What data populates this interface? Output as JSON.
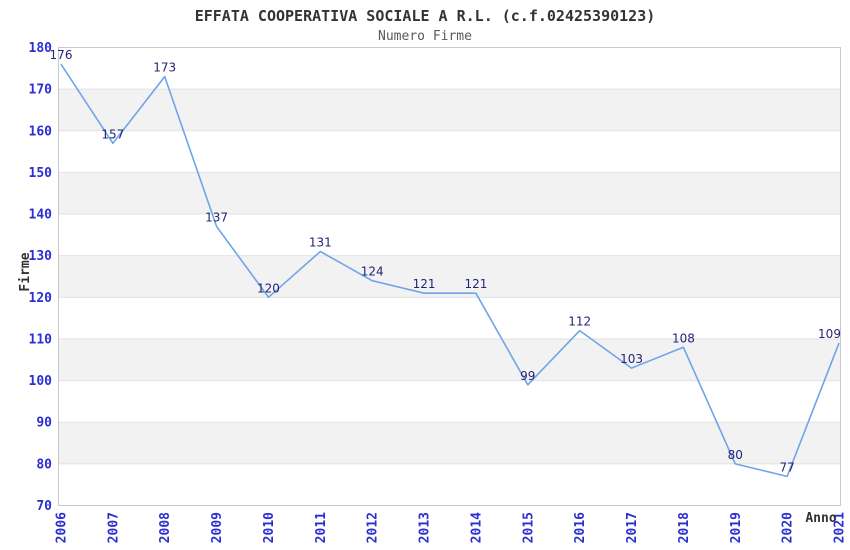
{
  "chart_data": {
    "type": "line",
    "title": "EFFATA COOPERATIVA SOCIALE A R.L. (c.f.02425390123)",
    "subtitle": "Numero Firme",
    "xlabel": "Anno",
    "ylabel": "Firme",
    "categories": [
      "2006",
      "2007",
      "2008",
      "2009",
      "2010",
      "2011",
      "2012",
      "2013",
      "2014",
      "2015",
      "2016",
      "2017",
      "2018",
      "2019",
      "2020",
      "2021"
    ],
    "values": [
      176,
      157,
      173,
      137,
      120,
      131,
      124,
      121,
      121,
      99,
      112,
      103,
      108,
      80,
      77,
      109
    ],
    "ylim": [
      70,
      180
    ],
    "ytick_step": 10,
    "grid": true,
    "legend": "none",
    "point_labels_visible": true,
    "colors": {
      "line": "#6fa5e8",
      "tick_label": "#2b2fd0",
      "point_label": "#242578",
      "band": "#f2f2f2",
      "gridline": "#e2e2e2",
      "border": "#c9c9c9",
      "title": "#333333",
      "subtitle": "#5a5a5a",
      "axis_title": "#333333"
    }
  }
}
